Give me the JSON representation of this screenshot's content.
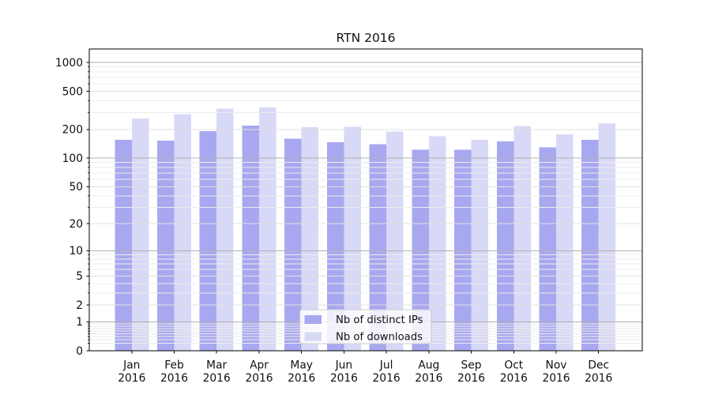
{
  "figure": {
    "background": "#ffffff"
  },
  "chart_data": {
    "type": "bar",
    "title": "RTN 2016",
    "yscale": "log1p (log-like axis: position proportional to log10(1+v))",
    "ylim": [
      0,
      1380
    ],
    "grid": "on (decade lines darker, minor lines faint)",
    "legend_position": "lower center",
    "categories": [
      "Jan 2016",
      "Feb 2016",
      "Mar 2016",
      "Apr 2016",
      "May 2016",
      "Jun 2016",
      "Jul 2016",
      "Aug 2016",
      "Sep 2016",
      "Oct 2016",
      "Nov 2016",
      "Dec 2016"
    ],
    "series": [
      {
        "name": "Nb of distinct IPs",
        "color": "#a8a8f0",
        "values": [
          155,
          153,
          192,
          220,
          160,
          147,
          140,
          123,
          123,
          150,
          130,
          155
        ]
      },
      {
        "name": "Nb of downloads",
        "color": "#d8d8f7",
        "values": [
          260,
          290,
          330,
          340,
          212,
          213,
          190,
          170,
          156,
          217,
          177,
          233
        ]
      }
    ],
    "ytick_labels": [
      "1000",
      "500",
      "200",
      "100",
      "50",
      "20",
      "10",
      "5",
      "2",
      "1",
      "0"
    ],
    "ytick_values": [
      1000,
      500,
      200,
      100,
      50,
      20,
      10,
      5,
      2,
      1,
      0
    ],
    "axis_color": "#000000",
    "text_color": "#111111",
    "grid_decade_color": "#b2b2b2",
    "grid_major_color": "#e0e0e0",
    "grid_minor_color": "#ececec",
    "legend_border_color": "#cccccc"
  }
}
